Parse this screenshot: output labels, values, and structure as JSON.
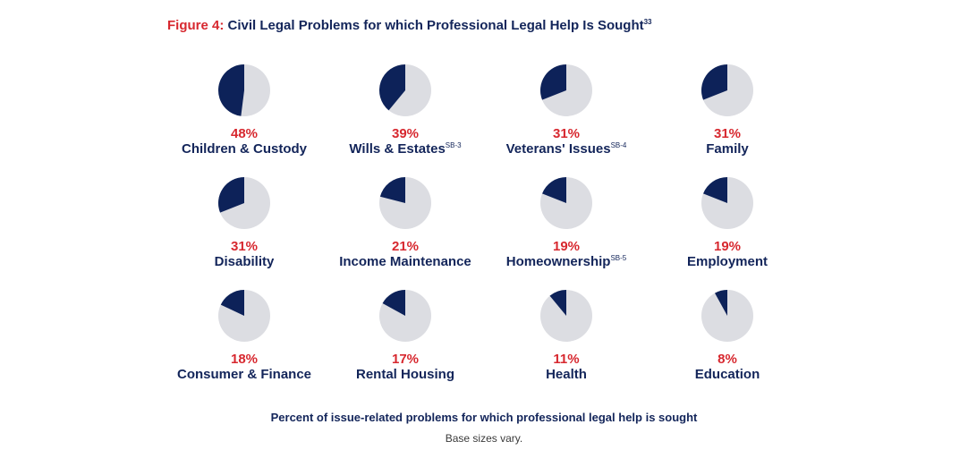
{
  "figure": {
    "label": "Figure 4:",
    "title": "Civil Legal Problems for which Professional Legal Help Is Sought",
    "title_superscript": "33"
  },
  "colors": {
    "accent_red": "#d7282f",
    "navy": "#13255a",
    "pie_fill": "#0d2259",
    "pie_rest": "#dcdde2"
  },
  "chart_data": {
    "type": "pie",
    "title": "Civil Legal Problems for which Professional Legal Help Is Sought",
    "caption": "Percent of issue-related problems for which professional legal help is sought",
    "note": "Base sizes vary.",
    "categories": [
      "Children & Custody",
      "Wills & Estates",
      "Veterans' Issues",
      "Family",
      "Disability",
      "Income Maintenance",
      "Homeownership",
      "Employment",
      "Consumer & Finance",
      "Rental Housing",
      "Health",
      "Education"
    ],
    "values": [
      48,
      39,
      31,
      31,
      31,
      21,
      19,
      19,
      18,
      17,
      11,
      8
    ],
    "unit": "%",
    "items": [
      {
        "label": "Children & Custody",
        "value": 48,
        "value_label": "48%",
        "footnote": ""
      },
      {
        "label": "Wills & Estates",
        "value": 39,
        "value_label": "39%",
        "footnote": "SB-3"
      },
      {
        "label": "Veterans' Issues",
        "value": 31,
        "value_label": "31%",
        "footnote": "SB-4"
      },
      {
        "label": "Family",
        "value": 31,
        "value_label": "31%",
        "footnote": ""
      },
      {
        "label": "Disability",
        "value": 31,
        "value_label": "31%",
        "footnote": ""
      },
      {
        "label": "Income Maintenance",
        "value": 21,
        "value_label": "21%",
        "footnote": ""
      },
      {
        "label": "Homeownership",
        "value": 19,
        "value_label": "19%",
        "footnote": "SB-5"
      },
      {
        "label": "Employment",
        "value": 19,
        "value_label": "19%",
        "footnote": ""
      },
      {
        "label": "Consumer & Finance",
        "value": 18,
        "value_label": "18%",
        "footnote": ""
      },
      {
        "label": "Rental Housing",
        "value": 17,
        "value_label": "17%",
        "footnote": ""
      },
      {
        "label": "Health",
        "value": 11,
        "value_label": "11%",
        "footnote": ""
      },
      {
        "label": "Education",
        "value": 8,
        "value_label": "8%",
        "footnote": ""
      }
    ]
  }
}
